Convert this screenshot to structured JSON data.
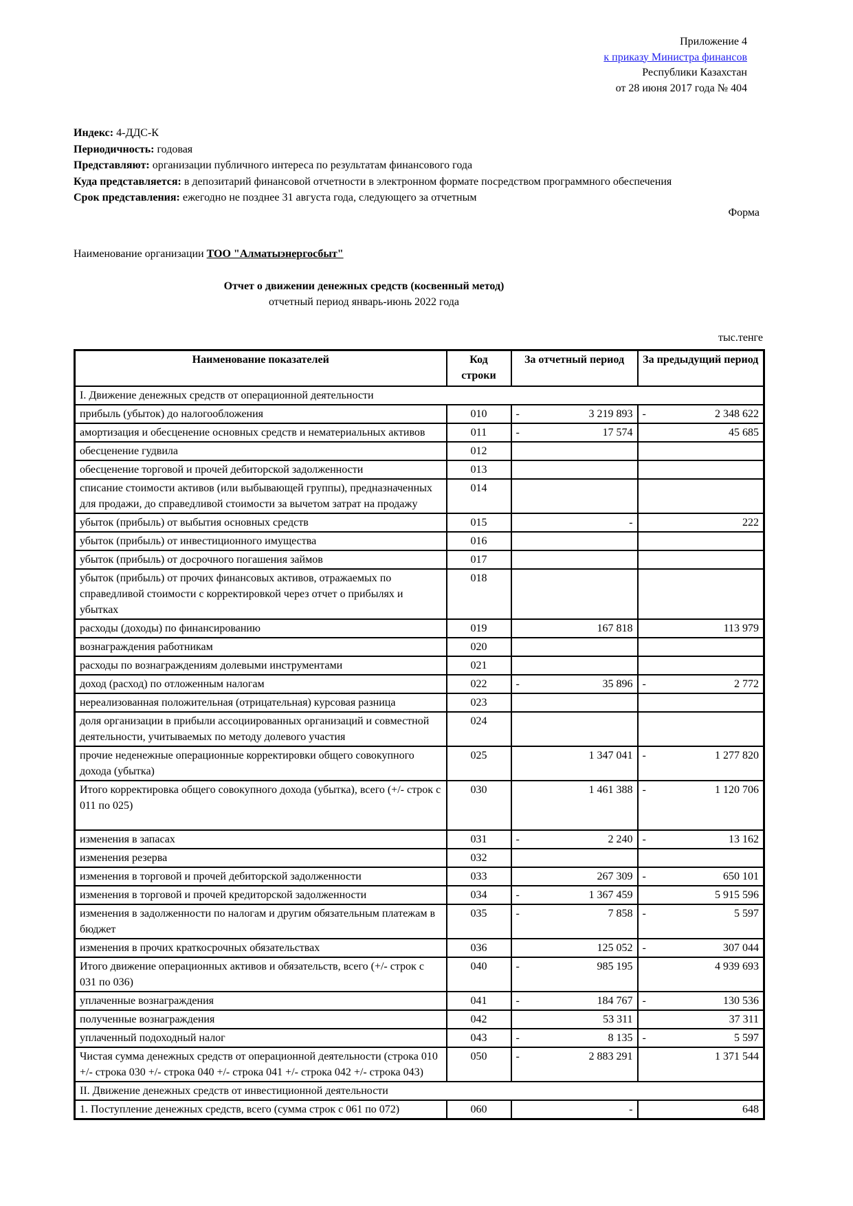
{
  "document": {
    "appendix": {
      "line1": "Приложение 4",
      "link": "к приказу Министра финансов",
      "line3": "Республики Казахстан",
      "line4": "от 28 июня 2017 года № 404"
    },
    "meta": {
      "index_label": "Индекс:",
      "index_value": "4-ДДС-К",
      "periodicity_label": "Периодичность:",
      "periodicity_value": "годовая",
      "present_label": "Представляют:",
      "present_value": "организации публичного интереса по результатам финансового года",
      "where_label": "Куда представляется:",
      "where_value": "в депозитарий финансовой отчетности в электронном формате посредством программного обеспечения",
      "deadline_label": "Срок представления:",
      "deadline_value": "ежегодно не позднее 31 августа года, следующего за отчетным"
    },
    "form_label": "Форма",
    "org_label": "Наименование организации",
    "org_name": "ТОО \"Алматыэнергосбыт\"",
    "title": "Отчет о движении денежных средств (косвенный метод)",
    "subtitle": "отчетный период январь-июнь 2022 года",
    "units": "тыс.тенге"
  },
  "colors": {
    "link_blue": "#2222ee",
    "text": "#000000",
    "background": "#ffffff"
  },
  "table": {
    "columns": [
      "Наименование показателей",
      "Код строки",
      "За отчетный период",
      "За предыдущий период"
    ],
    "rows": [
      {
        "type": "section",
        "label": "I. Движение денежных средств от операционной деятельности"
      },
      {
        "type": "data",
        "label": "прибыль (убыток) до налогообложения",
        "code": "010",
        "current_sign": "-",
        "current": "3 219 893",
        "previous_sign": "-",
        "previous": "2 348 622"
      },
      {
        "type": "data",
        "label": "амортизация и обесценение основных средств и нематериальных активов",
        "code": "011",
        "current_sign": "-",
        "current": "17 574",
        "previous_sign": "",
        "previous": "45 685"
      },
      {
        "type": "data",
        "label": "обесценение гудвила",
        "code": "012",
        "current_sign": "",
        "current": "",
        "previous_sign": "",
        "previous": ""
      },
      {
        "type": "data",
        "label": "обесценение торговой и прочей дебиторской задолженности",
        "code": "013",
        "current_sign": "",
        "current": "",
        "previous_sign": "",
        "previous": ""
      },
      {
        "type": "data",
        "label": "списание стоимости активов (или выбывающей группы), предназначенных для продажи, до справедливой стоимости за вычетом затрат на продажу",
        "code": "014",
        "current_sign": "",
        "current": "",
        "previous_sign": "",
        "previous": ""
      },
      {
        "type": "data",
        "label": "убыток (прибыль) от выбытия основных средств",
        "code": "015",
        "current_sign": "",
        "current": "-",
        "previous_sign": "",
        "previous": "222"
      },
      {
        "type": "data",
        "label": "убыток (прибыль) от инвестиционного имущества",
        "code": "016",
        "current_sign": "",
        "current": "",
        "previous_sign": "",
        "previous": ""
      },
      {
        "type": "data",
        "label": "убыток (прибыль) от досрочного погашения займов",
        "code": "017",
        "current_sign": "",
        "current": "",
        "previous_sign": "",
        "previous": ""
      },
      {
        "type": "data",
        "label": "убыток (прибыль) от прочих финансовых активов, отражаемых по справедливой стоимости с корректировкой через отчет о прибылях и убытках",
        "code": "018",
        "current_sign": "",
        "current": "",
        "previous_sign": "",
        "previous": ""
      },
      {
        "type": "data",
        "label": "расходы (доходы) по финансированию",
        "code": "019",
        "current_sign": "",
        "current": "167 818",
        "previous_sign": "",
        "previous": "113 979"
      },
      {
        "type": "data",
        "label": "вознаграждения работникам",
        "code": "020",
        "current_sign": "",
        "current": "",
        "previous_sign": "",
        "previous": ""
      },
      {
        "type": "data",
        "label": "расходы по вознаграждениям долевыми инструментами",
        "code": "021",
        "current_sign": "",
        "current": "",
        "previous_sign": "",
        "previous": ""
      },
      {
        "type": "data",
        "label": "доход (расход) по отложенным налогам",
        "code": "022",
        "current_sign": "-",
        "current": "35 896",
        "previous_sign": "-",
        "previous": "2 772"
      },
      {
        "type": "data",
        "label": "нереализованная положительная (отрицательная) курсовая разница",
        "code": "023",
        "current_sign": "",
        "current": "",
        "previous_sign": "",
        "previous": ""
      },
      {
        "type": "data",
        "label": "доля организации в прибыли ассоциированных организаций и совместной деятельности, учитываемых по методу долевого участия",
        "code": "024",
        "current_sign": "",
        "current": "",
        "previous_sign": "",
        "previous": ""
      },
      {
        "type": "data",
        "label": "прочие неденежные операционные корректировки общего совокупного дохода (убытка)",
        "code": "025",
        "current_sign": "",
        "current": "1 347 041",
        "previous_sign": "-",
        "previous": "1 277 820"
      },
      {
        "type": "data",
        "tall": true,
        "label": "Итого корректировка общего совокупного дохода (убытка), всего (+/- строк с 011 по 025)",
        "code": "030",
        "current_sign": "",
        "current": "1 461 388",
        "previous_sign": "-",
        "previous": "1 120 706"
      },
      {
        "type": "data",
        "label": "изменения в запасах",
        "code": "031",
        "current_sign": "-",
        "current": "2 240",
        "previous_sign": "-",
        "previous": "13 162"
      },
      {
        "type": "data",
        "label": "изменения резерва",
        "code": "032",
        "current_sign": "",
        "current": "",
        "previous_sign": "",
        "previous": ""
      },
      {
        "type": "data",
        "label": "изменения в торговой и прочей дебиторской задолженности",
        "code": "033",
        "current_sign": "",
        "current": "267 309",
        "previous_sign": "-",
        "previous": "650 101"
      },
      {
        "type": "data",
        "label": "изменения в торговой и прочей кредиторской задолженности",
        "code": "034",
        "current_sign": "-",
        "current": "1 367 459",
        "previous_sign": "",
        "previous": "5 915 596"
      },
      {
        "type": "data",
        "label": "изменения в задолженности по налогам и другим обязательным платежам в бюджет",
        "code": "035",
        "current_sign": "-",
        "current": "7 858",
        "previous_sign": "-",
        "previous": "5 597"
      },
      {
        "type": "data",
        "label": "изменения в прочих краткосрочных обязательствах",
        "code": "036",
        "current_sign": "",
        "current": "125 052",
        "previous_sign": "-",
        "previous": "307 044"
      },
      {
        "type": "data",
        "label": "Итого движение операционных активов и обязательств, всего (+/- строк с 031 по 036)",
        "code": "040",
        "current_sign": "-",
        "current": "985 195",
        "previous_sign": "",
        "previous": "4 939 693"
      },
      {
        "type": "data",
        "label": "уплаченные вознаграждения",
        "code": "041",
        "current_sign": "-",
        "current": "184 767",
        "previous_sign": "-",
        "previous": "130 536"
      },
      {
        "type": "data",
        "label": "полученные вознаграждения",
        "code": "042",
        "current_sign": "",
        "current": "53 311",
        "previous_sign": "",
        "previous": "37 311"
      },
      {
        "type": "data",
        "label": "уплаченный подоходный налог",
        "code": "043",
        "current_sign": "-",
        "current": "8 135",
        "previous_sign": "-",
        "previous": "5 597"
      },
      {
        "type": "data",
        "label": "Чистая сумма денежных средств от операционной деятельности (строка 010 +/- строка 030 +/- строка 040 +/- строка 041 +/- строка 042 +/- строка 043)",
        "code": "050",
        "current_sign": "-",
        "current": "2 883 291",
        "previous_sign": "",
        "previous": "1 371 544"
      },
      {
        "type": "section",
        "label": "II. Движение денежных средств от инвестиционной деятельности"
      },
      {
        "type": "data",
        "label": "1. Поступление денежных средств, всего (сумма строк с 061 по 072)",
        "code": "060",
        "current_sign": "",
        "current": "-",
        "previous_sign": "",
        "previous": "648"
      }
    ]
  }
}
